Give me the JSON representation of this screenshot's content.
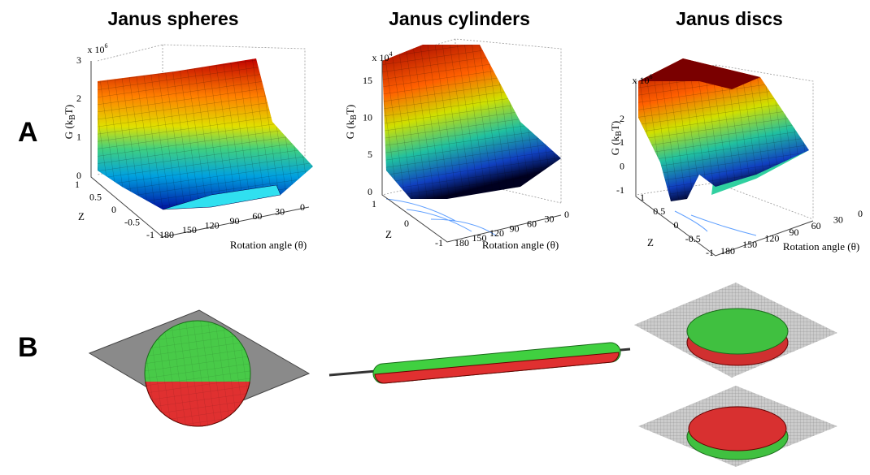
{
  "columns": [
    "Janus spheres",
    "Janus cylinders",
    "Janus discs"
  ],
  "row_labels": [
    "A",
    "B"
  ],
  "plots": [
    {
      "scale": {
        "base": "x 10",
        "exp": "6"
      },
      "y_label": {
        "main": "G (k",
        "sub": "B",
        "end": "T)"
      },
      "z_label": "Z",
      "x_label": "Rotation angle (θ)",
      "g_ticks": [
        0,
        1,
        2,
        3
      ],
      "z_ticks": [
        1,
        0.5,
        0,
        -0.5,
        -1
      ],
      "angle_ticks": [
        180,
        150,
        120,
        90,
        60,
        30,
        0
      ]
    },
    {
      "scale": {
        "base": "x 10",
        "exp": "4"
      },
      "y_label": {
        "main": "G (k",
        "sub": "B",
        "end": "T)"
      },
      "z_label": "Z",
      "x_label": "Rotation angle (θ)",
      "g_ticks": [
        0,
        5,
        10,
        15
      ],
      "z_ticks": [
        1,
        0,
        -1
      ],
      "angle_ticks": [
        180,
        150,
        120,
        90,
        60,
        30,
        0
      ]
    },
    {
      "scale": {
        "base": "x 10",
        "exp": "6"
      },
      "y_label": {
        "main": "G (k",
        "sub": "B",
        "end": "T)"
      },
      "z_label": "Z",
      "x_label": "Rotation angle (θ)",
      "g_ticks": [
        -1,
        0,
        1,
        2
      ],
      "z_ticks": [
        1,
        0.5,
        0,
        -0.5,
        -1
      ],
      "angle_ticks": [
        180,
        150,
        120,
        90,
        60,
        30,
        0
      ]
    }
  ]
}
